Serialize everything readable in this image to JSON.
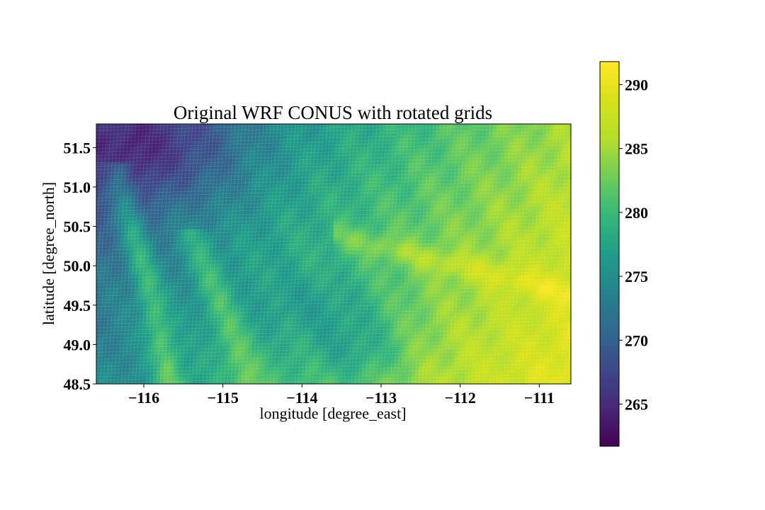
{
  "chart_data": {
    "type": "heatmap",
    "title": "Original WRF CONUS with rotated grids",
    "xlabel": "longitude [degree_east]",
    "ylabel": "latitude [degree_north]",
    "xlim": [
      -116.6,
      -110.6
    ],
    "ylim": [
      48.5,
      51.8
    ],
    "x_ticks": [
      {
        "value": -116,
        "label": "−116"
      },
      {
        "value": -115,
        "label": "−115"
      },
      {
        "value": -114,
        "label": "−114"
      },
      {
        "value": -113,
        "label": "−113"
      },
      {
        "value": -112,
        "label": "−112"
      },
      {
        "value": -111,
        "label": "−111"
      }
    ],
    "y_ticks": [
      {
        "value": 48.5,
        "label": "48.5"
      },
      {
        "value": 49.0,
        "label": "49.0"
      },
      {
        "value": 49.5,
        "label": "49.5"
      },
      {
        "value": 50.0,
        "label": "50.0"
      },
      {
        "value": 50.5,
        "label": "50.5"
      },
      {
        "value": 51.0,
        "label": "51.0"
      },
      {
        "value": 51.5,
        "label": "51.5"
      }
    ],
    "colormap": "viridis",
    "colorbar": {
      "range": [
        261.7,
        291.8
      ],
      "ticks": [
        {
          "value": 265,
          "label": "265"
        },
        {
          "value": 270,
          "label": "270"
        },
        {
          "value": 275,
          "label": "275"
        },
        {
          "value": 280,
          "label": "280"
        },
        {
          "value": 285,
          "label": "285"
        },
        {
          "value": 290,
          "label": "290"
        }
      ]
    },
    "field_description": "Colder values (~262-270) in the mountainous north-west, warmer values (~285-290) in the south-east plains, with a warm valley band running north-west to south-east near -116 to -115.",
    "field_extent": {
      "min": 261.7,
      "max": 291.8
    }
  }
}
